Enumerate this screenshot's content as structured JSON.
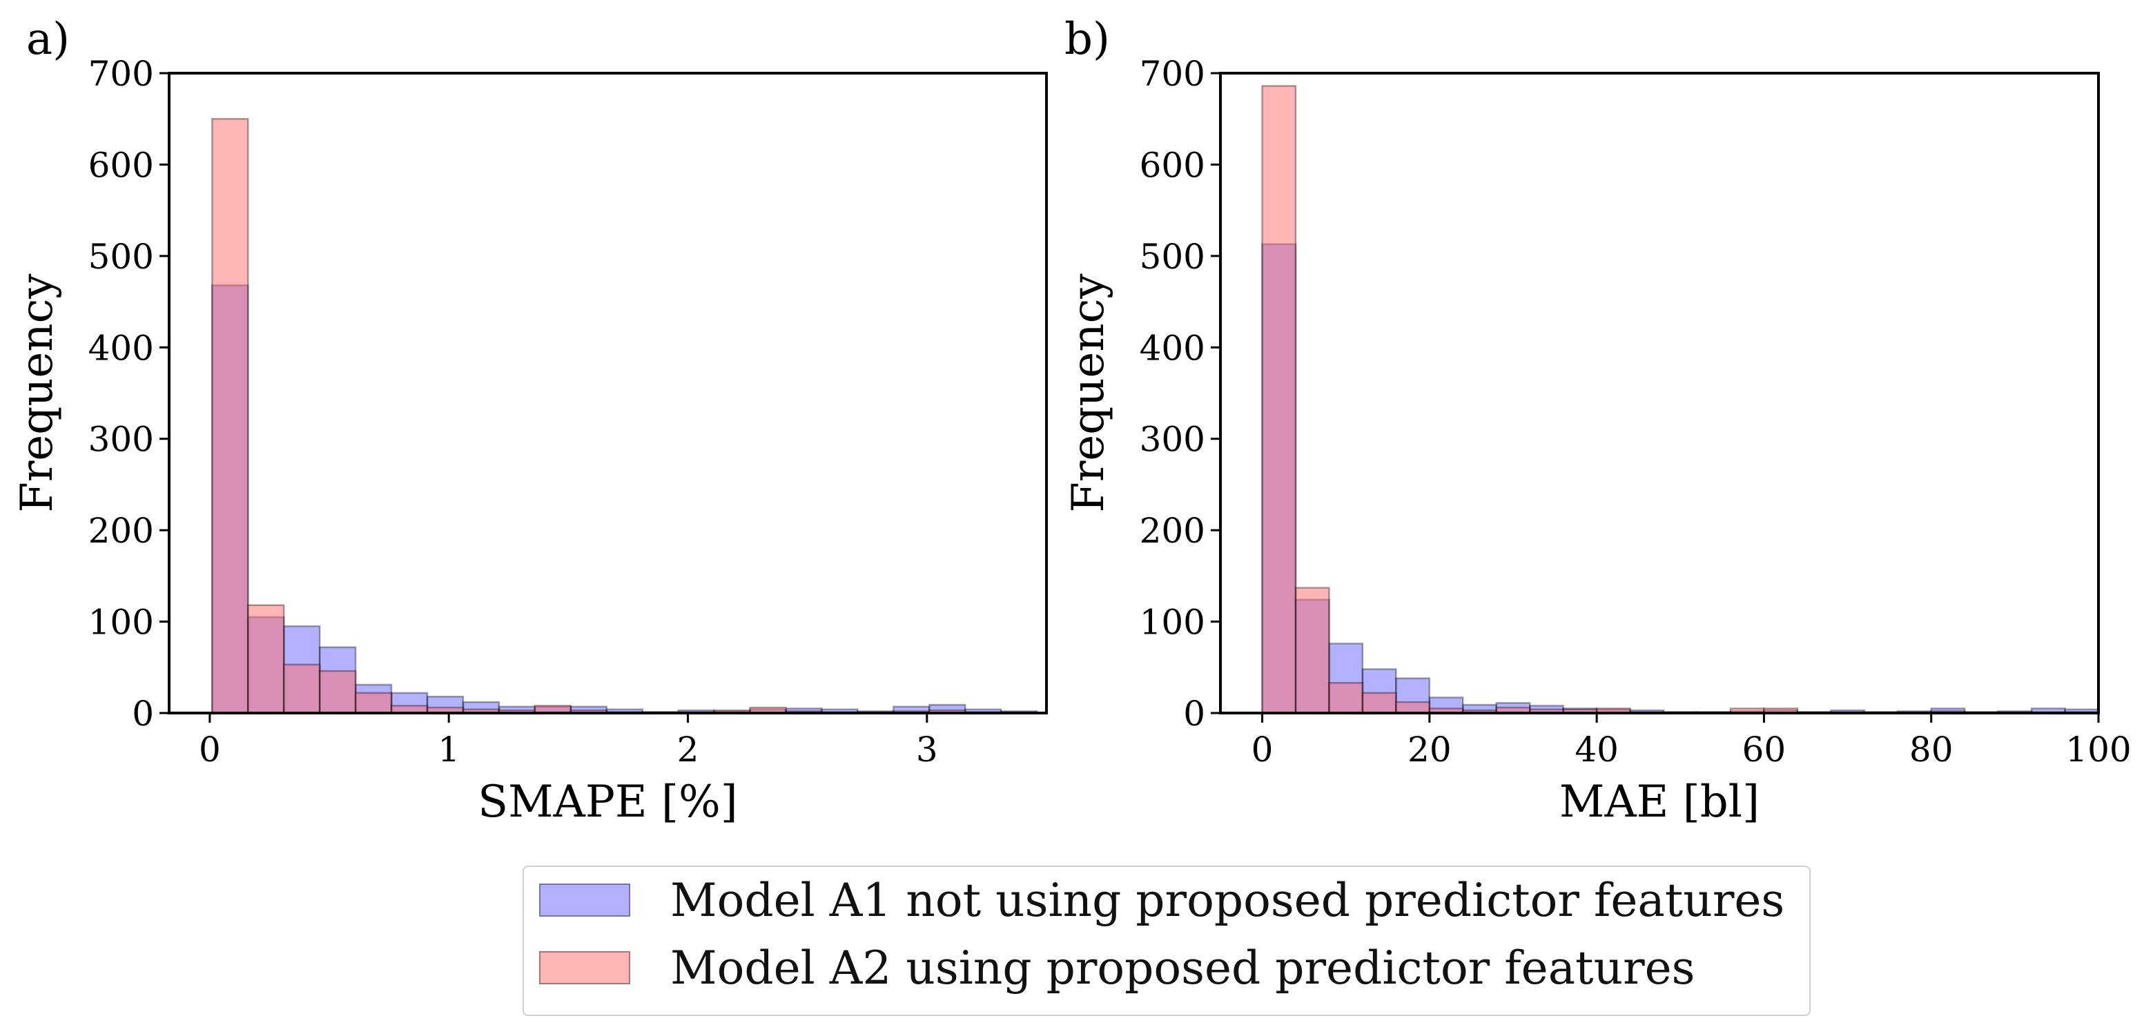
{
  "colors": {
    "series_a1": "#6666ff",
    "series_a2": "#ff6b6b"
  },
  "legend": {
    "entries": [
      {
        "label": "Model A1 not using proposed predictor features",
        "color_key": "series_a1"
      },
      {
        "label": "Model A2 using proposed predictor features",
        "color_key": "series_a2"
      }
    ],
    "placement": "bottom-center"
  },
  "chart_data": [
    {
      "type": "bar",
      "panel_label": "a)",
      "title": "",
      "xlabel": "SMAPE [%]",
      "ylabel": "Frequency",
      "xlim": [
        -0.17,
        3.5
      ],
      "ylim": [
        0,
        700
      ],
      "xticks": [
        0,
        1,
        2,
        3
      ],
      "yticks": [
        0,
        100,
        200,
        300,
        400,
        500,
        600,
        700
      ],
      "grid": false,
      "bin_edges": [
        0.01,
        0.16,
        0.31,
        0.46,
        0.61,
        0.76,
        0.91,
        1.06,
        1.21,
        1.36,
        1.51,
        1.66,
        1.81,
        1.96,
        2.11,
        2.26,
        2.41,
        2.56,
        2.71,
        2.86,
        3.01,
        3.16,
        3.31,
        3.46
      ],
      "series": [
        {
          "name": "Model A1 not using proposed predictor features",
          "color_key": "series_a1",
          "values": [
            468,
            105,
            95,
            72,
            31,
            22,
            18,
            12,
            7,
            7,
            7,
            4,
            1,
            3,
            2,
            4,
            5,
            4,
            2,
            7,
            9,
            4,
            2
          ]
        },
        {
          "name": "Model A2 using proposed predictor features",
          "color_key": "series_a2",
          "values": [
            650,
            118,
            53,
            46,
            22,
            8,
            6,
            4,
            3,
            8,
            3,
            1,
            1,
            1,
            3,
            6,
            2,
            1,
            1,
            2,
            3,
            1,
            1
          ]
        }
      ]
    },
    {
      "type": "bar",
      "panel_label": "b)",
      "title": "",
      "xlabel": "MAE [bl]",
      "ylabel": "Frequency",
      "xlim": [
        -5,
        100
      ],
      "ylim": [
        0,
        700
      ],
      "xticks": [
        0,
        20,
        40,
        60,
        80,
        100
      ],
      "yticks": [
        0,
        100,
        200,
        300,
        400,
        500,
        600,
        700
      ],
      "grid": false,
      "bin_edges": [
        0,
        4,
        8,
        12,
        16,
        20,
        24,
        28,
        32,
        36,
        40,
        44,
        48,
        52,
        56,
        60,
        64,
        68,
        72,
        76,
        80,
        84,
        88,
        92,
        96,
        100
      ],
      "series": [
        {
          "name": "Model A1 not using proposed predictor features",
          "color_key": "series_a1",
          "values": [
            513,
            124,
            76,
            48,
            38,
            17,
            9,
            11,
            8,
            5,
            4,
            3,
            1,
            1,
            2,
            3,
            1,
            3,
            1,
            2,
            5,
            1,
            2,
            5,
            4
          ]
        },
        {
          "name": "Model A2 using proposed predictor features",
          "color_key": "series_a2",
          "values": [
            686,
            137,
            33,
            22,
            12,
            5,
            3,
            6,
            4,
            4,
            5,
            1,
            1,
            1,
            5,
            5,
            1,
            1,
            1,
            1,
            2,
            1,
            1,
            1,
            1
          ]
        }
      ]
    }
  ]
}
